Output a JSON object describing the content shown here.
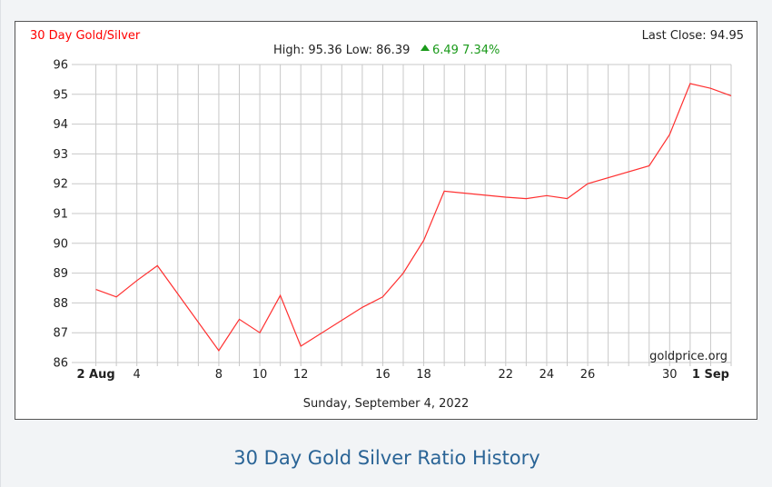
{
  "chart_title": "30 Day Gold/Silver",
  "last_close": "Last Close: 94.95",
  "stats": {
    "high_low": "High: 95.36 Low: 86.39",
    "change": "6.49 7.34%"
  },
  "watermark": "goldprice.org",
  "date_label": "Sunday, September 4, 2022",
  "caption": "30 Day Gold Silver Ratio History",
  "colors": {
    "line": "#ff3030",
    "title": "#ff0000",
    "up": "#1a9a1a",
    "caption": "#2a6496"
  },
  "chart_data": {
    "type": "line",
    "title": "30 Day Gold/Silver",
    "xlabel": "",
    "ylabel": "",
    "x_ticks": [
      {
        "day": 2,
        "label": "2 Aug",
        "bold": true
      },
      {
        "day": 4,
        "label": "4"
      },
      {
        "day": 8,
        "label": "8"
      },
      {
        "day": 10,
        "label": "10"
      },
      {
        "day": 12,
        "label": "12"
      },
      {
        "day": 16,
        "label": "16"
      },
      {
        "day": 18,
        "label": "18"
      },
      {
        "day": 22,
        "label": "22"
      },
      {
        "day": 24,
        "label": "24"
      },
      {
        "day": 26,
        "label": "26"
      },
      {
        "day": 30,
        "label": "30"
      },
      {
        "day": 32,
        "label": "1 Sep",
        "bold": true
      }
    ],
    "grid_days": [
      2,
      3,
      4,
      5,
      6,
      7,
      8,
      9,
      10,
      11,
      12,
      13,
      14,
      15,
      16,
      17,
      18,
      19,
      20,
      21,
      22,
      23,
      24,
      25,
      26,
      27,
      28,
      29,
      30,
      31,
      32,
      33
    ],
    "ylim": [
      86,
      96
    ],
    "y_ticks": [
      86,
      87,
      88,
      89,
      90,
      91,
      92,
      93,
      94,
      95,
      96
    ],
    "grid": true,
    "series": [
      {
        "points": [
          {
            "x": "2022-08-02",
            "y": 88.45
          },
          {
            "x": "2022-08-03",
            "y": 88.2
          },
          {
            "x": "2022-08-04",
            "y": 88.75
          },
          {
            "x": "2022-08-05",
            "y": 89.25
          },
          {
            "x": "2022-08-08",
            "y": 86.4
          },
          {
            "x": "2022-08-09",
            "y": 87.45
          },
          {
            "x": "2022-08-10",
            "y": 87.0
          },
          {
            "x": "2022-08-11",
            "y": 88.25
          },
          {
            "x": "2022-08-12",
            "y": 86.55
          },
          {
            "x": "2022-08-15",
            "y": 87.85
          },
          {
            "x": "2022-08-16",
            "y": 88.2
          },
          {
            "x": "2022-08-17",
            "y": 89.0
          },
          {
            "x": "2022-08-18",
            "y": 90.1
          },
          {
            "x": "2022-08-19",
            "y": 91.75
          },
          {
            "x": "2022-08-22",
            "y": 91.55
          },
          {
            "x": "2022-08-23",
            "y": 91.5
          },
          {
            "x": "2022-08-24",
            "y": 91.6
          },
          {
            "x": "2022-08-25",
            "y": 91.5
          },
          {
            "x": "2022-08-26",
            "y": 92.0
          },
          {
            "x": "2022-08-29",
            "y": 92.6
          },
          {
            "x": "2022-08-30",
            "y": 93.65
          },
          {
            "x": "2022-08-31",
            "y": 95.36
          },
          {
            "x": "2022-09-01",
            "y": 95.2
          },
          {
            "x": "2022-09-02",
            "y": 94.95
          }
        ]
      }
    ]
  }
}
